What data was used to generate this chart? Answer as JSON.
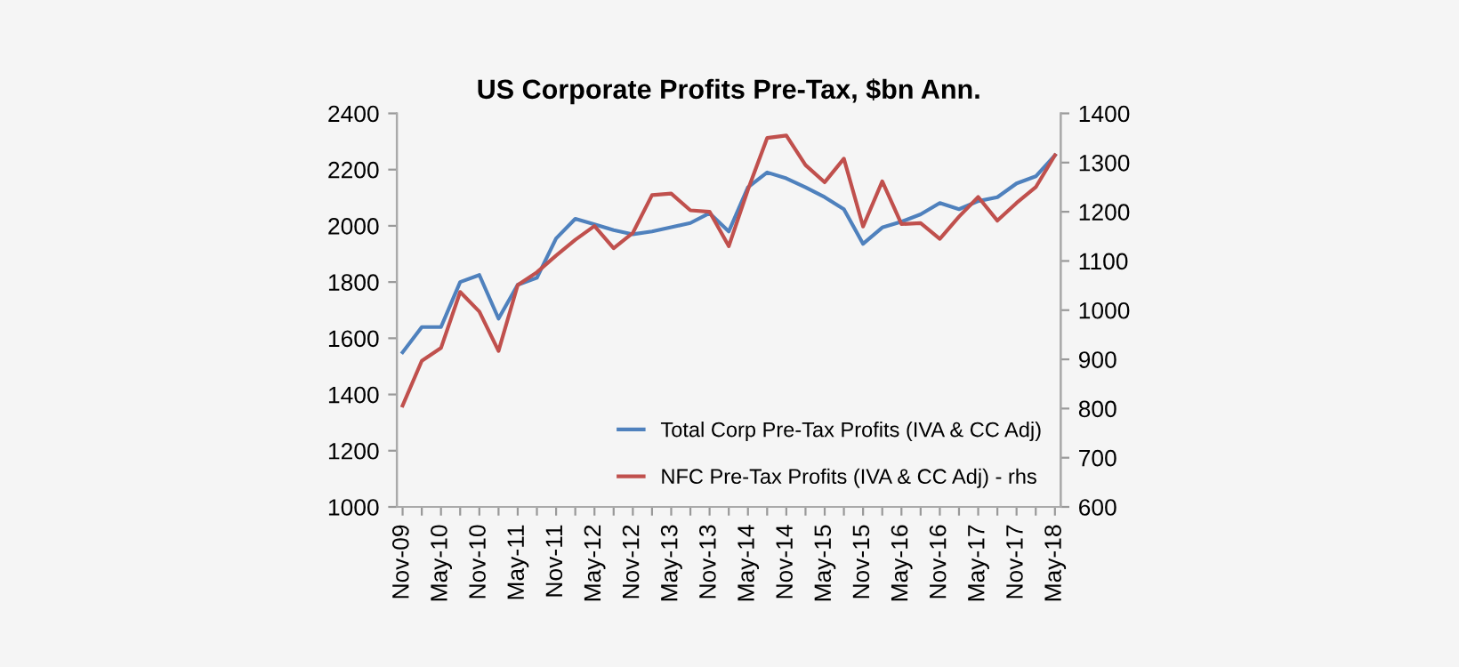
{
  "chart_data": {
    "type": "line",
    "title": "US Corporate Profits Pre-Tax, $bn Ann.",
    "categories": [
      "Nov-09",
      null,
      "May-10",
      null,
      "Nov-10",
      null,
      "May-11",
      null,
      "Nov-11",
      null,
      "May-12",
      null,
      "Nov-12",
      null,
      "May-13",
      null,
      "Nov-13",
      null,
      "May-14",
      null,
      "Nov-14",
      null,
      "May-15",
      null,
      "Nov-15",
      null,
      "May-16",
      null,
      "Nov-16",
      null,
      "May-17",
      null,
      "Nov-17",
      null,
      "May-18"
    ],
    "series": [
      {
        "name": "Total Corp Pre-Tax Profits (IVA & CC Adj)",
        "color": "#4f81bd",
        "values": [
          1550,
          1640,
          1640,
          1800,
          1825,
          1670,
          1790,
          1815,
          1955,
          2025,
          2005,
          1985,
          1970,
          1980,
          1995,
          2010,
          2045,
          1980,
          2137,
          2190,
          2169,
          2137,
          2102,
          2059,
          1936,
          1994,
          2015,
          2041,
          2081,
          2059,
          2088,
          2102,
          2151,
          2176,
          2251
        ]
      },
      {
        "name": "NFC Pre-Tax Profits (IVA & CC Adj) - rhs",
        "color": "#c0504d",
        "axis": "y2",
        "values": [
          806,
          897,
          923,
          1037,
          997,
          917,
          1051,
          1077,
          1111,
          1143,
          1171,
          1126,
          1157,
          1234,
          1237,
          1203,
          1200,
          1130,
          1245,
          1350,
          1355,
          1295,
          1260,
          1308,
          1170,
          1262,
          1175,
          1177,
          1145,
          1190,
          1230,
          1182,
          1218,
          1250,
          1315
        ]
      }
    ],
    "ylim": [
      1000,
      2400
    ],
    "yticks": [
      1000,
      1200,
      1400,
      1600,
      1800,
      2000,
      2200,
      2400
    ],
    "y2lim": [
      600,
      1400
    ],
    "y2ticks": [
      600,
      700,
      800,
      900,
      1000,
      1100,
      1200,
      1300,
      1400
    ],
    "legend": "bottom right",
    "grid": false
  }
}
